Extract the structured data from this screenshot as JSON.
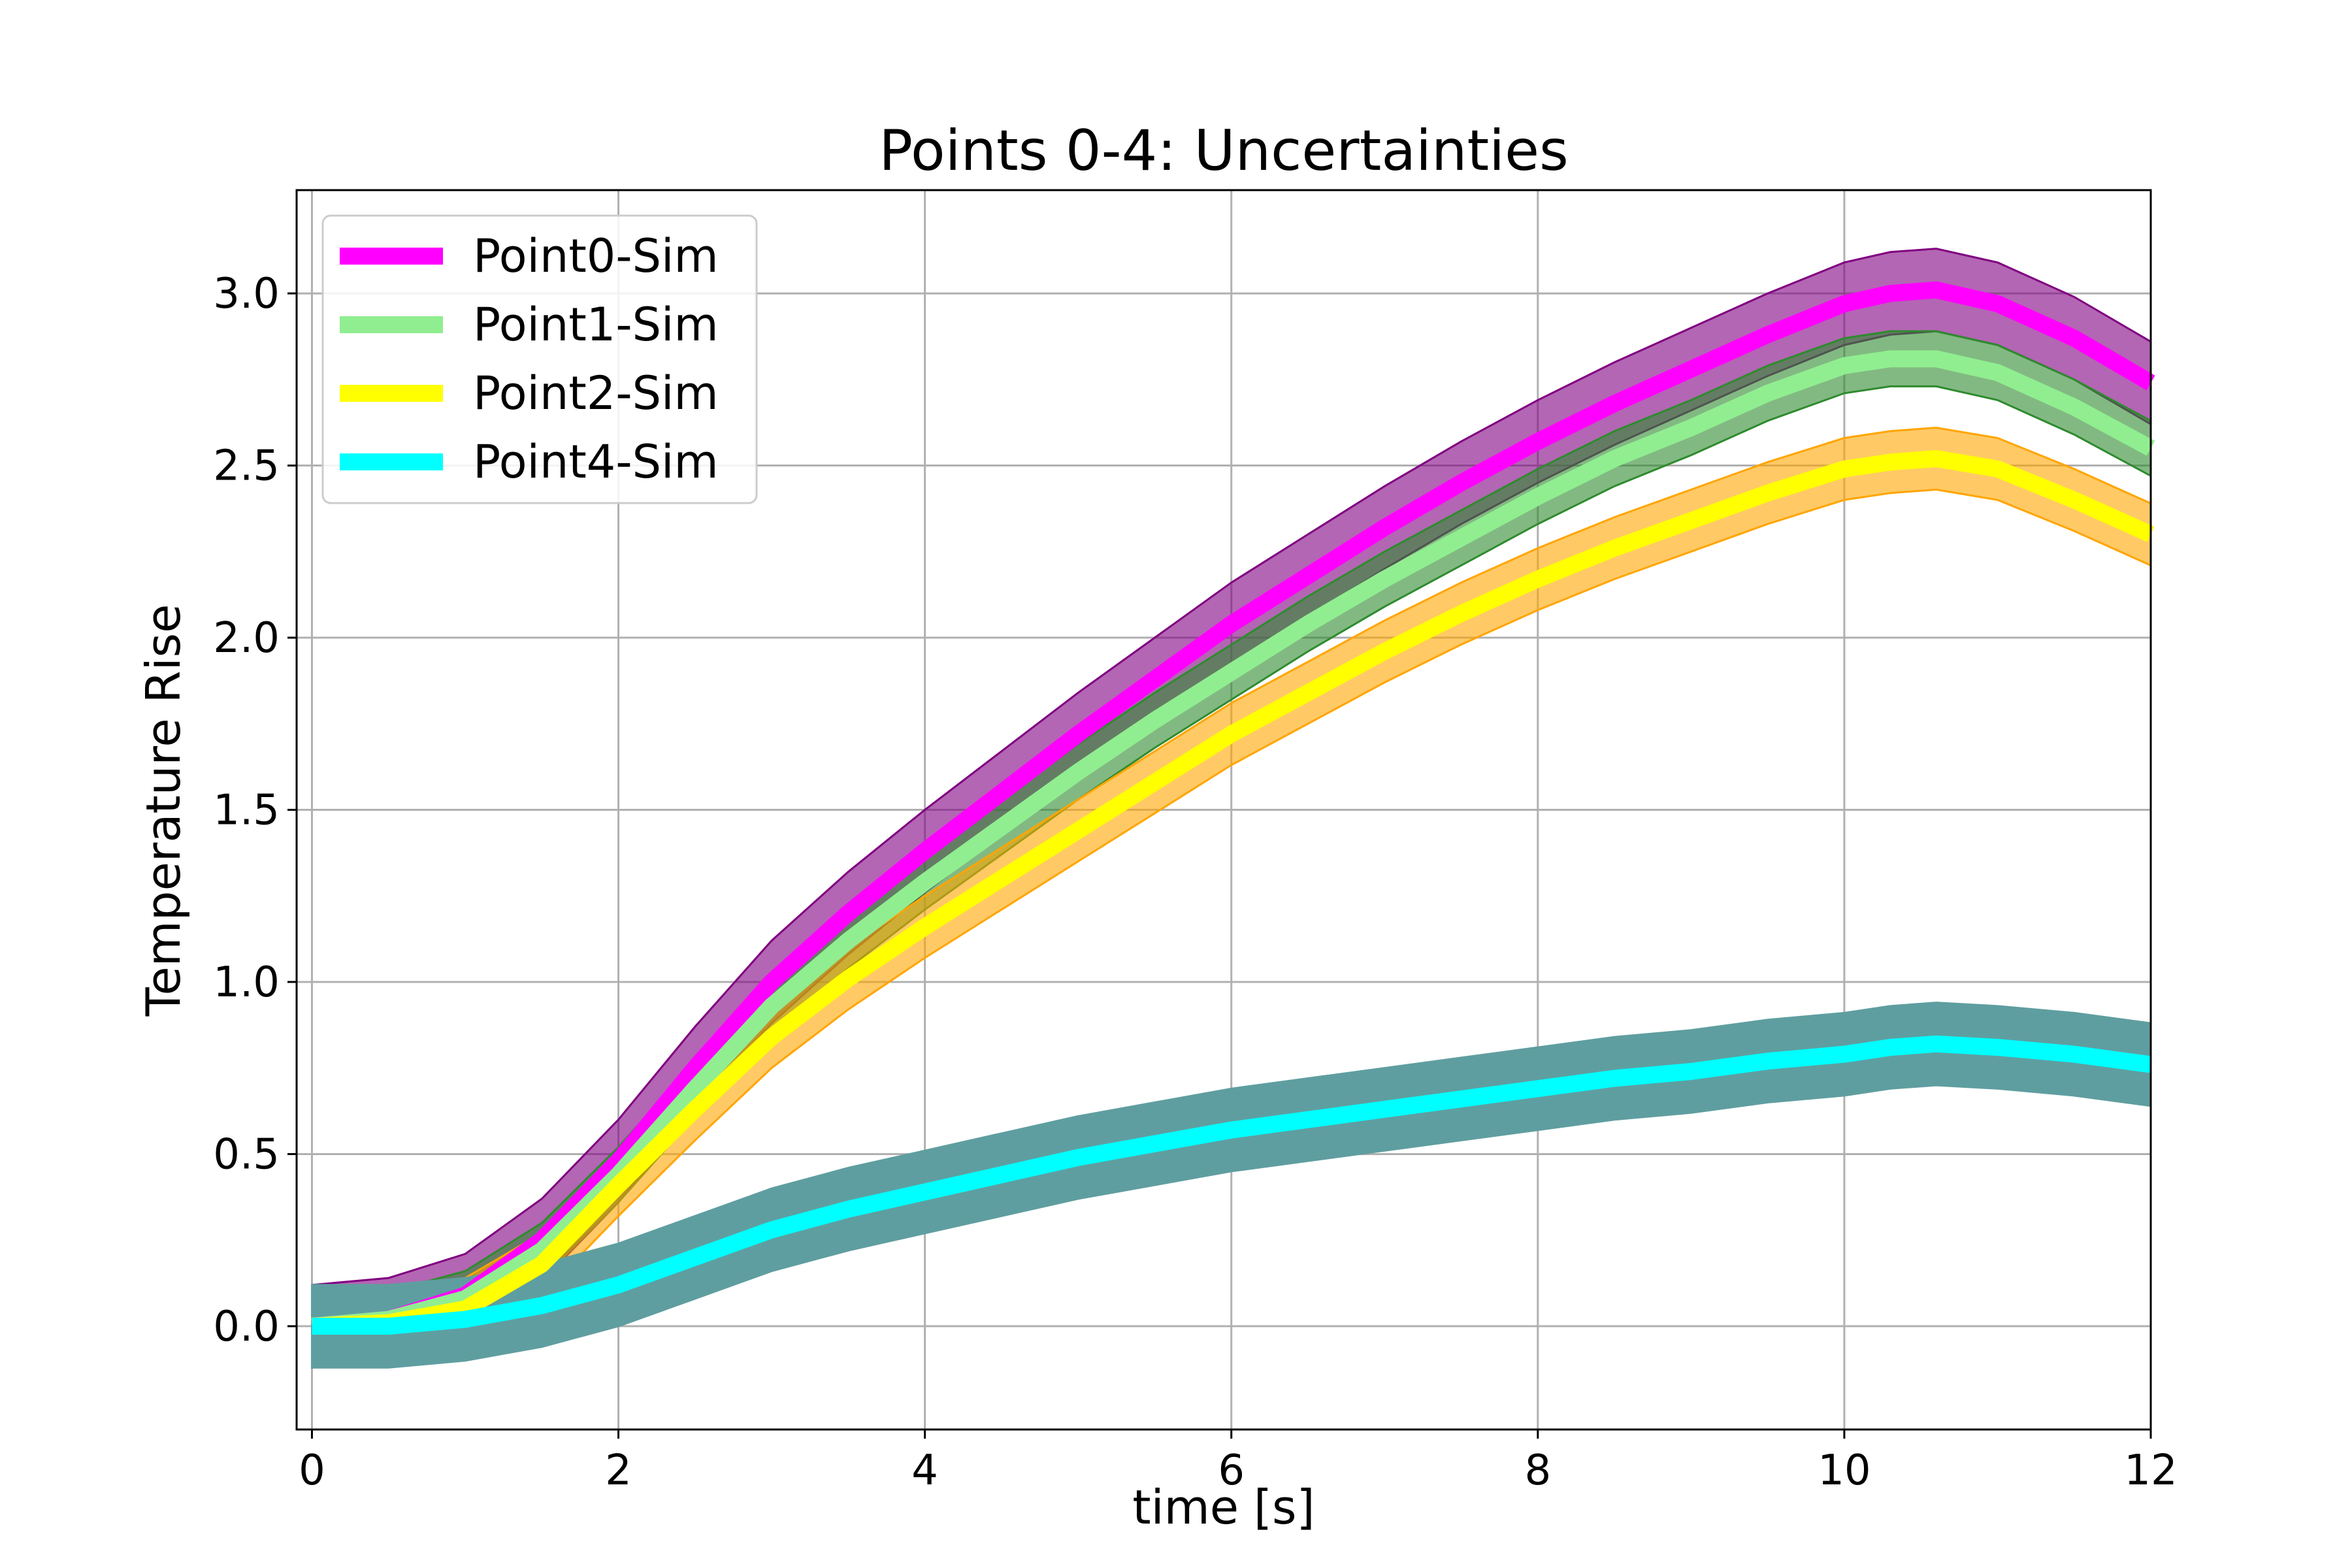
{
  "chart_data": {
    "type": "line",
    "title": "Points 0-4: Uncertainties",
    "xlabel": "time [s]",
    "ylabel": "Temperature Rise",
    "xlim": [
      -0.1,
      12
    ],
    "ylim": [
      -0.3,
      3.3
    ],
    "x_ticks": [
      0,
      2,
      4,
      6,
      8,
      10,
      12
    ],
    "x_tick_labels": [
      "0",
      "2",
      "4",
      "6",
      "8",
      "10",
      "12"
    ],
    "y_ticks": [
      0.0,
      0.5,
      1.0,
      1.5,
      2.0,
      2.5,
      3.0
    ],
    "y_tick_labels": [
      "0.0",
      "0.5",
      "1.0",
      "1.5",
      "2.0",
      "2.5",
      "3.0"
    ],
    "grid": true,
    "legend_position": "upper-left",
    "x": [
      0,
      0.5,
      1,
      1.5,
      2,
      2.5,
      3,
      3.5,
      4,
      4.5,
      5,
      5.5,
      6,
      6.5,
      7,
      7.5,
      8,
      8.5,
      9,
      9.5,
      10,
      10.3,
      10.6,
      11,
      11.5,
      12
    ],
    "series": [
      {
        "name": "Point0-Sim",
        "color": "#ff00ff",
        "band_color": "#800080",
        "band_halfwidth": 0.12,
        "values": [
          0.0,
          0.02,
          0.09,
          0.25,
          0.48,
          0.75,
          1.0,
          1.2,
          1.38,
          1.55,
          1.72,
          1.88,
          2.04,
          2.18,
          2.32,
          2.45,
          2.57,
          2.68,
          2.78,
          2.88,
          2.97,
          3.0,
          3.01,
          2.97,
          2.87,
          2.74
        ]
      },
      {
        "name": "Point1-Sim",
        "color": "#90ee90",
        "band_color": "#2e8b2e",
        "band_halfwidth": 0.08,
        "values": [
          0.0,
          0.02,
          0.08,
          0.22,
          0.44,
          0.69,
          0.93,
          1.12,
          1.29,
          1.45,
          1.61,
          1.76,
          1.9,
          2.04,
          2.17,
          2.29,
          2.41,
          2.52,
          2.61,
          2.71,
          2.79,
          2.81,
          2.81,
          2.77,
          2.67,
          2.55
        ]
      },
      {
        "name": "Point2-Sim",
        "color": "#ffff00",
        "band_color": "#ffa500",
        "band_halfwidth": 0.09,
        "values": [
          0.0,
          0.01,
          0.05,
          0.18,
          0.41,
          0.63,
          0.84,
          1.01,
          1.16,
          1.3,
          1.44,
          1.58,
          1.72,
          1.84,
          1.96,
          2.07,
          2.17,
          2.26,
          2.34,
          2.42,
          2.49,
          2.51,
          2.52,
          2.49,
          2.4,
          2.3
        ]
      },
      {
        "name": "Point4-Sim",
        "color": "#00ffff",
        "band_color": "#5f9ea0",
        "band_halfwidth": 0.12,
        "values": [
          0.0,
          0.0,
          0.02,
          0.06,
          0.12,
          0.2,
          0.28,
          0.34,
          0.39,
          0.44,
          0.49,
          0.53,
          0.57,
          0.6,
          0.63,
          0.66,
          0.69,
          0.72,
          0.74,
          0.77,
          0.79,
          0.81,
          0.82,
          0.81,
          0.79,
          0.76
        ]
      }
    ]
  }
}
